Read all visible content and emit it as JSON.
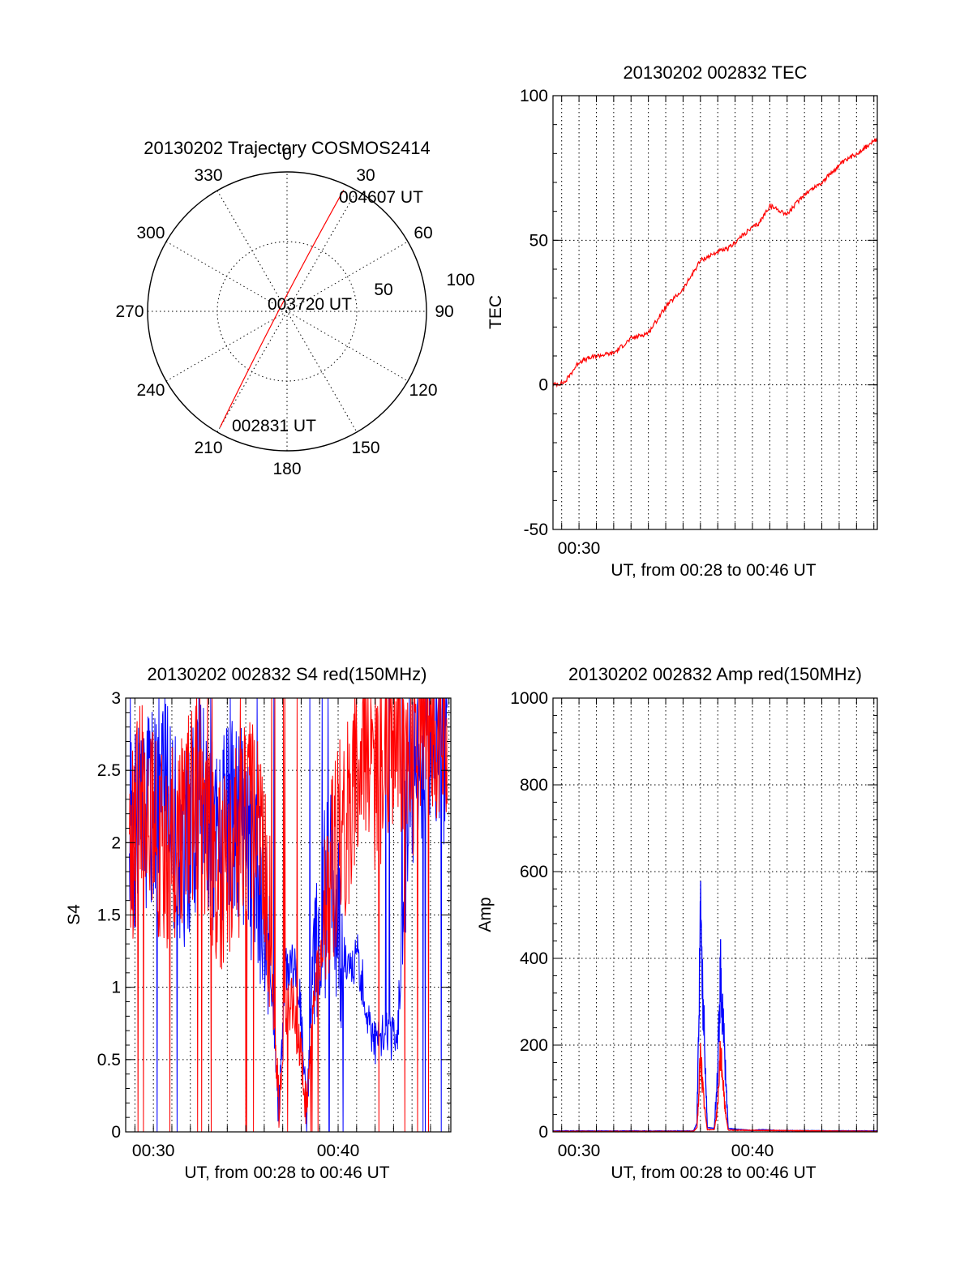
{
  "colors": {
    "red_trace": "#ff0000",
    "blue_trace": "#0000ff",
    "axes": "#000000"
  },
  "chart_data": [
    {
      "id": "trajectory",
      "type": "polar",
      "title": "20130202 Trajectory COSMOS2414",
      "angle_labels": [
        "0",
        "30",
        "60",
        "90",
        "120",
        "150",
        "180",
        "210",
        "240",
        "270",
        "300",
        "330"
      ],
      "radius_labels": [
        "50",
        "100"
      ],
      "rlim": [
        0,
        100
      ],
      "annotations": [
        "004607 UT",
        "003720 UT",
        "002831 UT"
      ],
      "track": {
        "start": {
          "az": 210,
          "r": 96,
          "label": "002831 UT"
        },
        "mid": {
          "az": 320,
          "r": 6,
          "label": "003720 UT"
        },
        "end": {
          "az": 25,
          "r": 96,
          "label": "004607 UT"
        }
      },
      "grid": true
    },
    {
      "id": "tec",
      "type": "line",
      "title": "20130202 002832 TEC",
      "xlabel": "UT, from 00:28 to 00:46 UT",
      "ylabel": "TEC",
      "xlim": [
        28.5,
        47.2
      ],
      "ylim": [
        -50,
        100
      ],
      "yticks": [
        "-50",
        "0",
        "50",
        "100"
      ],
      "xticks": [
        "00:30"
      ],
      "xtick_values": [
        30
      ],
      "grid": true,
      "series": [
        {
          "color": "red",
          "x": [
            28.5,
            29.2,
            30.0,
            31.0,
            32.0,
            33.0,
            34.0,
            35.0,
            36.0,
            37.0,
            38.0,
            38.6,
            39.3,
            39.7,
            40.4,
            41.0,
            42.0,
            43.0,
            44.0,
            45.0,
            46.0,
            47.2
          ],
          "y": [
            0,
            1,
            8,
            10,
            11,
            16,
            18,
            27,
            33,
            43,
            46,
            47,
            51,
            53,
            56,
            62,
            59,
            66,
            70,
            76,
            80,
            85
          ]
        }
      ]
    },
    {
      "id": "s4",
      "type": "line",
      "title": "20130202 002832 S4 red(150MHz)",
      "xlabel": "UT, from 00:28 to 00:46 UT",
      "ylabel": "S4",
      "xlim": [
        28.5,
        46.1
      ],
      "ylim": [
        0,
        3
      ],
      "yticks": [
        "0",
        "0.5",
        "1",
        "1.5",
        "2",
        "2.5",
        "3"
      ],
      "xticks": [
        "00:30",
        "00:40"
      ],
      "xtick_values": [
        30,
        40
      ],
      "grid": true,
      "series": [
        {
          "color": "blue",
          "x": [
            28.7,
            29.5,
            30.5,
            31.5,
            32.5,
            33.5,
            34.5,
            35.5,
            36.2,
            36.8,
            37.1,
            37.5,
            37.9,
            38.3,
            38.7,
            39.2,
            39.8,
            40.5,
            41.1,
            41.6,
            42.1,
            42.6,
            43.2,
            43.8,
            44.5,
            45.2,
            45.9
          ],
          "y": [
            2.0,
            2.2,
            2.4,
            1.9,
            2.3,
            2.0,
            2.2,
            1.8,
            1.5,
            0.1,
            1.1,
            1.2,
            1.0,
            0.1,
            1.4,
            1.6,
            1.7,
            1.1,
            1.2,
            0.8,
            0.6,
            0.7,
            0.6,
            2.4,
            2.7,
            2.8,
            2.6
          ]
        },
        {
          "color": "red",
          "x": [
            28.7,
            29.5,
            30.5,
            31.5,
            32.5,
            33.5,
            34.5,
            35.5,
            36.2,
            36.8,
            37.1,
            37.5,
            37.9,
            38.3,
            38.7,
            39.2,
            39.8,
            40.5,
            41.1,
            41.6,
            42.1,
            42.6,
            43.2,
            43.8,
            44.5,
            45.2,
            45.9
          ],
          "y": [
            1.8,
            2.5,
            1.9,
            2.1,
            2.4,
            1.7,
            2.0,
            2.3,
            1.6,
            0.15,
            0.8,
            0.9,
            0.6,
            0.15,
            1.0,
            1.3,
            1.9,
            2.2,
            2.6,
            2.8,
            2.4,
            2.7,
            2.9,
            2.5,
            2.8,
            2.9,
            2.7
          ]
        }
      ]
    },
    {
      "id": "amp",
      "type": "line",
      "title": "20130202 002832 Amp red(150MHz)",
      "xlabel": "UT, from 00:28 to 00:46 UT",
      "ylabel": "Amp",
      "xlim": [
        28.5,
        47.2
      ],
      "ylim": [
        0,
        1000
      ],
      "yticks": [
        "0",
        "200",
        "400",
        "600",
        "800",
        "1000"
      ],
      "xticks": [
        "00:30",
        "00:40"
      ],
      "xtick_values": [
        30,
        40
      ],
      "grid": true,
      "series": [
        {
          "color": "blue",
          "x": [
            28.5,
            36.6,
            36.8,
            36.9,
            37.0,
            37.1,
            37.25,
            37.4,
            37.8,
            38.0,
            38.15,
            38.25,
            38.4,
            38.6,
            40.0,
            40.5,
            41.5,
            47.2
          ],
          "y": [
            2,
            2,
            20,
            250,
            510,
            360,
            200,
            10,
            8,
            150,
            370,
            300,
            180,
            8,
            3,
            5,
            3,
            2
          ]
        },
        {
          "color": "red",
          "x": [
            28.5,
            36.6,
            36.8,
            36.9,
            37.0,
            37.1,
            37.25,
            37.4,
            37.8,
            38.0,
            38.15,
            38.25,
            38.4,
            38.6,
            47.2
          ],
          "y": [
            1,
            1,
            10,
            80,
            180,
            120,
            50,
            5,
            5,
            60,
            180,
            150,
            60,
            4,
            1
          ]
        }
      ]
    }
  ]
}
